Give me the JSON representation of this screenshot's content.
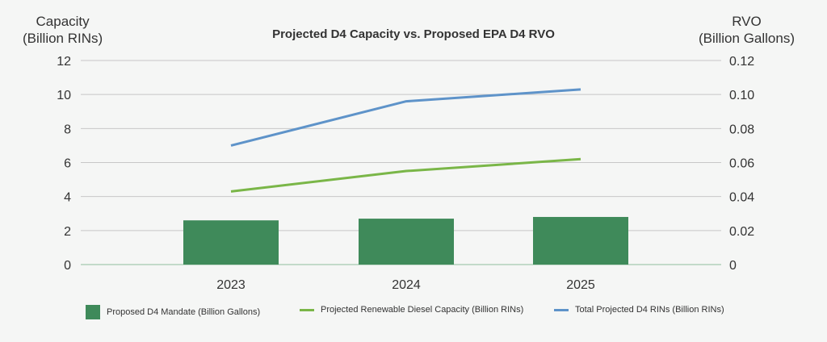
{
  "chart_data": {
    "type": "bar+line",
    "title": "Projected D4 Capacity vs. Proposed EPA D4 RVO",
    "ylabel_left": [
      "Capacity",
      "(Billion RINs)"
    ],
    "ylabel_right": [
      "RVO",
      "(Billion Gallons)"
    ],
    "categories": [
      "2023",
      "2024",
      "2025"
    ],
    "y_left": {
      "min": 0,
      "max": 12,
      "ticks": [
        "0",
        "2",
        "4",
        "6",
        "8",
        "10",
        "12"
      ]
    },
    "y_right": {
      "min": 0,
      "max": 0.12,
      "ticks": [
        "0",
        "0.02",
        "0.04",
        "0.06",
        "0.08",
        "0.10",
        "0.12"
      ]
    },
    "series": [
      {
        "name": "Proposed D4 Mandate (Billion Gallons)",
        "type": "bar",
        "axis": "left",
        "color": "#3f8a5a",
        "values": [
          2.6,
          2.7,
          2.8
        ]
      },
      {
        "name": "Projected Renewable Diesel Capacity (Billion RINs)",
        "type": "line",
        "axis": "left",
        "color": "#7ab648",
        "values": [
          4.3,
          5.5,
          6.2
        ]
      },
      {
        "name": "Total Projected D4 RINs (Billion RINs)",
        "type": "line",
        "axis": "left",
        "color": "#5e93c9",
        "values": [
          7.0,
          9.6,
          10.3
        ]
      }
    ],
    "legend_position": "bottom",
    "grid": true
  }
}
